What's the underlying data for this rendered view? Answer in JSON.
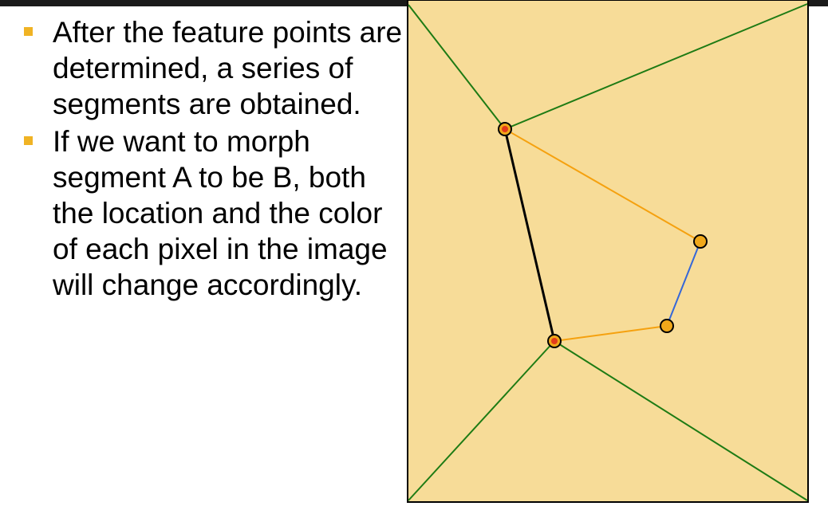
{
  "bullets": [
    {
      "text": "After the feature points are determined, a series of segments are obtained."
    },
    {
      "text": "If we want to morph segment A to be B, both the location and the color of each pixel in the image will change accordingly."
    }
  ],
  "colors": {
    "accent_bullet": "#f0b324",
    "image_background": "#f7dc98",
    "boundary_lines": "#1e7b14",
    "segment_a": "#000000",
    "segment_b": "#3567d8",
    "connector_lines": "#f5a10f",
    "feature_point_fill": "#f0a81a",
    "feature_point_center": "#e43b1c"
  }
}
